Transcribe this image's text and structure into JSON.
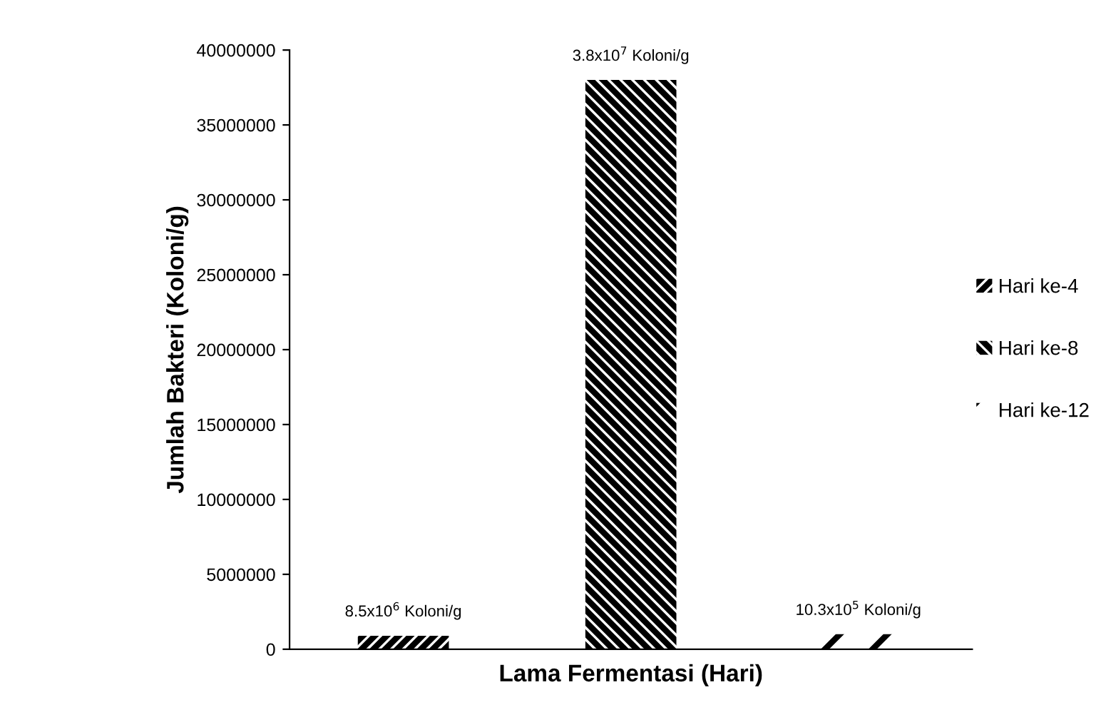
{
  "chart_data": {
    "type": "bar",
    "xlabel": "Lama Fermentasi (Hari)",
    "ylabel": "Jumlah Bakteri (Koloni/g)",
    "categories": [
      null,
      null,
      null
    ],
    "series": [
      {
        "name": "Hari ke-4",
        "color": "#000000",
        "values": [
          900000,
          null,
          null
        ]
      },
      {
        "name": "Hari ke-8",
        "color": "#000000",
        "values": [
          null,
          38000000,
          null
        ]
      },
      {
        "name": "Hari ke-12",
        "color": "#000000",
        "values": [
          null,
          null,
          1000000
        ]
      }
    ],
    "annotations": [
      {
        "text": "8.5x10$^{6}$ Koloni/g",
        "y": 900000
      },
      {
        "text": "3.8x10$^{7}$ Koloni/g",
        "y": 38000000
      },
      {
        "text": "10.3x10$^{5}$ Koloni/g",
        "y": 1000000
      }
    ],
    "ylim": [
      0,
      40000000
    ],
    "yticks": [
      0,
      5000000,
      10000000,
      15000000,
      20000000,
      25000000,
      30000000,
      35000000,
      40000000
    ],
    "grid": false,
    "legend": "right"
  }
}
